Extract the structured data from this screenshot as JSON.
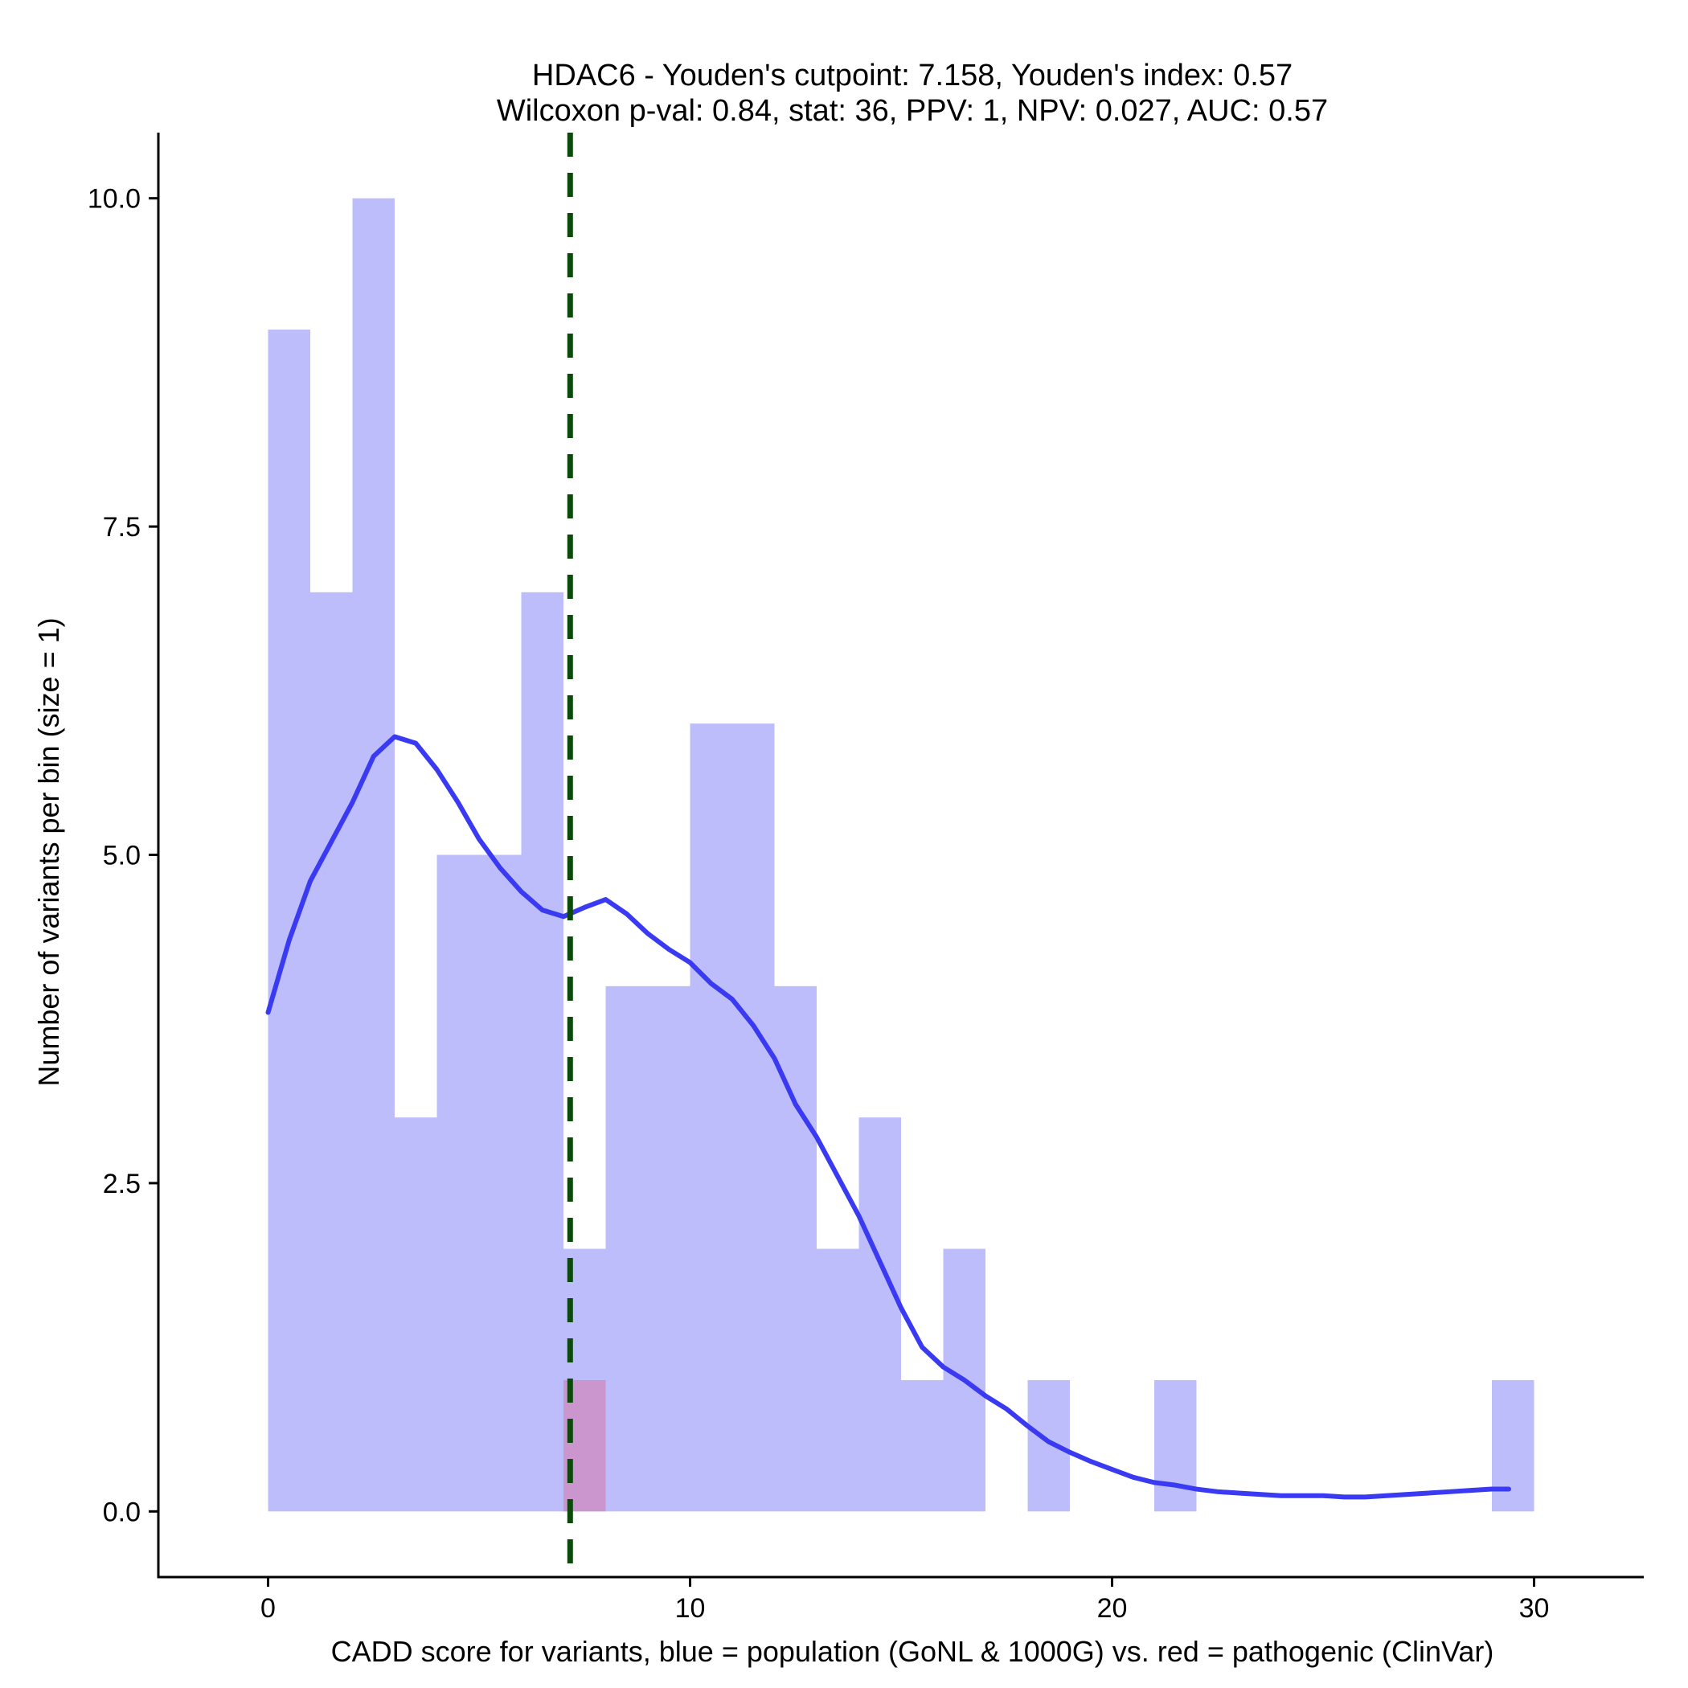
{
  "chart_data": {
    "type": "bar",
    "title_line1": "HDAC6 - Youden's cutpoint: 7.158, Youden's index: 0.57",
    "title_line2": "Wilcoxon p-val: 0.84, stat: 36, PPV: 1, NPV: 0.027, AUC: 0.57",
    "xlabel": "CADD score for variants, blue = population (GoNL & 1000G) vs. red = pathogenic (ClinVar)",
    "ylabel": "Number of variants per bin (size = 1)",
    "xlim": [
      -2.6,
      32.6
    ],
    "ylim": [
      -0.5,
      10.5
    ],
    "xticks": [
      0,
      10,
      20,
      30
    ],
    "xtick_labels": [
      "0",
      "10",
      "20",
      "30"
    ],
    "yticks": [
      0,
      2.5,
      5,
      7.5,
      10
    ],
    "ytick_labels": [
      "0.0",
      "2.5",
      "5.0",
      "7.5",
      "10.0"
    ],
    "bin_width": 1,
    "cutpoint": 7.158,
    "colors": {
      "population": "#bdbdfb",
      "pathogenic": "#cc8fc4",
      "density": "#3a3af2",
      "cutpoint": "#0b4a0b",
      "axis": "#000000"
    },
    "series": [
      {
        "name": "population (GoNL & 1000G)",
        "bins": [
          {
            "x0": 0,
            "count": 9
          },
          {
            "x0": 1,
            "count": 7
          },
          {
            "x0": 2,
            "count": 10
          },
          {
            "x0": 3,
            "count": 3
          },
          {
            "x0": 4,
            "count": 5
          },
          {
            "x0": 5,
            "count": 5
          },
          {
            "x0": 6,
            "count": 7
          },
          {
            "x0": 7,
            "count": 2
          },
          {
            "x0": 8,
            "count": 4
          },
          {
            "x0": 9,
            "count": 4
          },
          {
            "x0": 10,
            "count": 6
          },
          {
            "x0": 11,
            "count": 6
          },
          {
            "x0": 12,
            "count": 4
          },
          {
            "x0": 13,
            "count": 2
          },
          {
            "x0": 14,
            "count": 3
          },
          {
            "x0": 15,
            "count": 1
          },
          {
            "x0": 16,
            "count": 2
          },
          {
            "x0": 18,
            "count": 1
          },
          {
            "x0": 21,
            "count": 1
          },
          {
            "x0": 29,
            "count": 1
          }
        ]
      },
      {
        "name": "pathogenic (ClinVar)",
        "bins": [
          {
            "x0": 7,
            "count": 1
          }
        ]
      }
    ],
    "density_curve": {
      "name": "population density",
      "x": [
        0,
        0.5,
        1,
        1.5,
        2,
        2.5,
        3,
        3.5,
        4,
        4.5,
        5,
        5.5,
        6,
        6.5,
        7,
        7.5,
        8,
        8.5,
        9,
        9.5,
        10,
        10.5,
        11,
        11.5,
        12,
        12.5,
        13,
        13.5,
        14,
        14.5,
        15,
        15.5,
        16,
        16.5,
        17,
        17.5,
        18,
        18.5,
        19,
        19.5,
        20,
        20.5,
        21,
        21.5,
        22,
        22.5,
        23,
        23.5,
        24,
        24.5,
        25,
        25.5,
        26,
        26.5,
        27,
        27.5,
        28,
        28.5,
        29,
        29.4
      ],
      "y": [
        3.8,
        4.35,
        4.8,
        5.1,
        5.4,
        5.75,
        5.9,
        5.85,
        5.65,
        5.4,
        5.12,
        4.9,
        4.72,
        4.58,
        4.53,
        4.6,
        4.66,
        4.55,
        4.4,
        4.28,
        4.18,
        4.02,
        3.9,
        3.7,
        3.45,
        3.1,
        2.85,
        2.55,
        2.25,
        1.9,
        1.55,
        1.25,
        1.1,
        1.0,
        0.88,
        0.78,
        0.65,
        0.53,
        0.45,
        0.38,
        0.32,
        0.26,
        0.22,
        0.2,
        0.17,
        0.15,
        0.14,
        0.13,
        0.12,
        0.12,
        0.12,
        0.11,
        0.11,
        0.12,
        0.13,
        0.14,
        0.15,
        0.16,
        0.17,
        0.17
      ]
    }
  }
}
